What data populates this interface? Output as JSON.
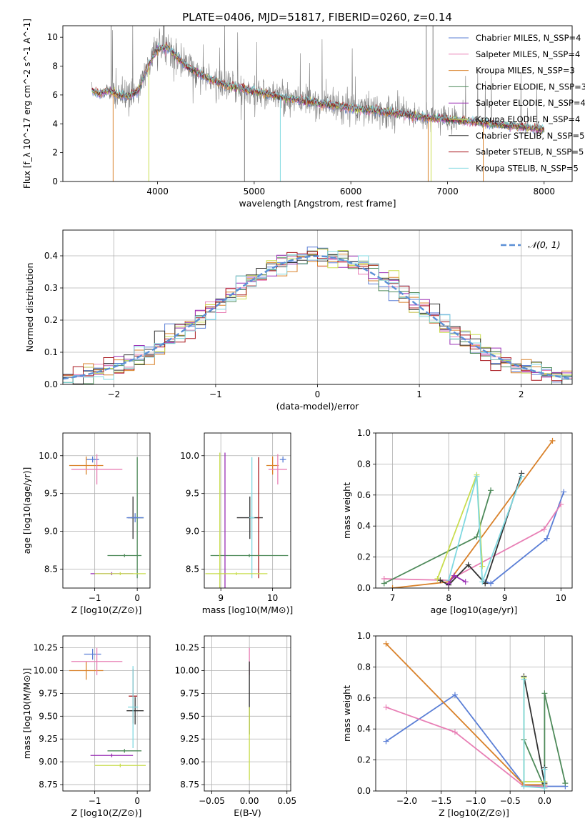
{
  "figure": {
    "title": "PLATE=0406, MJD=51817, FIBERID=0260, z=0.14"
  },
  "chart_data": [
    {
      "id": "spectrum",
      "type": "line",
      "xlabel": "wavelength [Angstrom, rest frame]",
      "ylabel": "Flux [f_λ 10^-17 erg cm^-2 s^-1 A^-1]",
      "xlim": [
        3020,
        8290
      ],
      "ylim": [
        0,
        10.8
      ],
      "xticks": [
        4000,
        5000,
        6000,
        7000,
        8000
      ],
      "yticks": [
        0,
        2,
        4,
        6,
        8,
        10
      ],
      "grid": false,
      "legend_position": "top-right",
      "legend": [
        {
          "label": "Chabrier MILES, N_SSP=4",
          "color": "#5b7fd6"
        },
        {
          "label": "Salpeter MILES, N_SSP=4",
          "color": "#e87fb5"
        },
        {
          "label": "Kroupa MILES, N_SSP=3",
          "color": "#d9822b"
        },
        {
          "label": "Chabrier ELODIE, N_SSP=3",
          "color": "#4e8a5a"
        },
        {
          "label": "Salpeter ELODIE, N_SSP=4",
          "color": "#9a2fb5"
        },
        {
          "label": "Kroupa ELODIE, N_SSP=4",
          "color": "#c9dd4f"
        },
        {
          "label": "Chabrier STELIB, N_SSP=5",
          "color": "#333333"
        },
        {
          "label": "Salpeter STELIB, N_SSP=5",
          "color": "#a8161b"
        },
        {
          "label": "Kroupa STELIB, N_SSP=5",
          "color": "#7fd8e0"
        }
      ],
      "observed_color": "#7f7f7f",
      "continuum": {
        "x": [
          3320,
          3400,
          3500,
          3600,
          3700,
          3800,
          3900,
          4000,
          4100,
          4200,
          4300,
          4500,
          4700,
          4900,
          5100,
          5300,
          5500,
          5800,
          6100,
          6400,
          6700,
          7000,
          7300,
          7600,
          7900,
          8000
        ],
        "y": [
          6.3,
          6.1,
          6.3,
          6.0,
          5.9,
          6.3,
          8.0,
          9.2,
          9.3,
          8.6,
          8.0,
          7.2,
          6.7,
          6.4,
          6.1,
          5.8,
          5.6,
          5.3,
          5.0,
          4.8,
          4.5,
          4.3,
          4.1,
          3.9,
          3.7,
          3.6
        ]
      },
      "spikes": [
        {
          "x": 3540,
          "y": 0,
          "color": "#d9822b"
        },
        {
          "x": 3910,
          "y": 0,
          "color": "#c9dd4f"
        },
        {
          "x": 5270,
          "y": 0,
          "color": "#7fd8e0"
        },
        {
          "x": 6800,
          "y": 0,
          "color": "#d9822b"
        },
        {
          "x": 6830,
          "y": 0,
          "color": "#c9dd4f"
        },
        {
          "x": 7370,
          "y": 0,
          "color": "#d9822b"
        },
        {
          "x": 4900,
          "y": 0,
          "color": "#7f7f7f"
        },
        {
          "x": 6780,
          "y": 10.8,
          "color": "#7f7f7f"
        },
        {
          "x": 6850,
          "y": 10.8,
          "color": "#7f7f7f"
        },
        {
          "x": 3520,
          "y": 10.8,
          "color": "#7f7f7f"
        }
      ]
    },
    {
      "id": "residuals",
      "type": "line",
      "xlabel": "(data-model)/error",
      "ylabel": "Normed distribution",
      "xlim": [
        -2.5,
        2.5
      ],
      "ylim": [
        0,
        0.48
      ],
      "xticks": [
        -2,
        -1,
        0,
        1,
        2
      ],
      "yticks": [
        0.0,
        0.1,
        0.2,
        0.3,
        0.4
      ],
      "grid": true,
      "legend": [
        {
          "label": "𝒩(0, 1)",
          "color": "#5b8fd6"
        }
      ],
      "legend_position": "top-right",
      "bin_width": 0.1
    },
    {
      "id": "age-vs-Z",
      "type": "scatter",
      "xlabel": "Z [log10(Z/Z⊙)]",
      "ylabel": "age [log10(age/yr)]",
      "xlim": [
        -1.75,
        0.3
      ],
      "ylim": [
        8.25,
        10.3
      ],
      "xticks": [
        -1,
        0
      ],
      "yticks": [
        8.5,
        9.0,
        9.5,
        10.0
      ],
      "grid": true,
      "points": [
        {
          "x": -1.05,
          "y": 9.95,
          "xerr": 0.15,
          "yerr": 0.04,
          "color": "#5b7fd6"
        },
        {
          "x": -1.2,
          "y": 9.87,
          "xerr": 0.4,
          "yerr": 0.12,
          "color": "#d9822b"
        },
        {
          "x": -0.95,
          "y": 9.82,
          "xerr": 0.6,
          "yerr": 0.2,
          "color": "#e87fb5"
        },
        {
          "x": -0.1,
          "y": 9.18,
          "xerr": 0.12,
          "yerr": 0.28,
          "color": "#333333"
        },
        {
          "x": 0.0,
          "y": 9.18,
          "xerr": 0.15,
          "yerr": 0.8,
          "color": "#4e8a5a"
        },
        {
          "x": -0.05,
          "y": 9.18,
          "xerr": 0.2,
          "yerr": 0.06,
          "color": "#5b7fd6"
        },
        {
          "x": -0.3,
          "y": 8.68,
          "xerr": 0.4,
          "yerr": 0.02,
          "color": "#4e8a5a"
        },
        {
          "x": -0.6,
          "y": 8.44,
          "xerr": 0.5,
          "yerr": 0.02,
          "color": "#9a2fb5"
        },
        {
          "x": -0.4,
          "y": 8.44,
          "xerr": 0.6,
          "yerr": 0.02,
          "color": "#c9dd4f"
        }
      ]
    },
    {
      "id": "age-vs-mass",
      "type": "scatter",
      "xlabel": "mass [log10(M/M⊙)]",
      "ylabel": "",
      "xlim": [
        8.68,
        10.35
      ],
      "ylim": [
        8.25,
        10.3
      ],
      "xticks": [
        9,
        10
      ],
      "yticks": [
        8.5,
        9.0,
        9.5,
        10.0
      ],
      "grid": true,
      "points": [
        {
          "x": 10.2,
          "y": 9.95,
          "xerr": 0.06,
          "yerr": 0.04,
          "color": "#5b7fd6"
        },
        {
          "x": 10.0,
          "y": 9.87,
          "xerr": 0.12,
          "yerr": 0.12,
          "color": "#d9822b"
        },
        {
          "x": 10.1,
          "y": 9.82,
          "xerr": 0.18,
          "yerr": 0.2,
          "color": "#e87fb5"
        },
        {
          "x": 9.56,
          "y": 9.18,
          "xerr": 0.25,
          "yerr": 0.28,
          "color": "#333333"
        },
        {
          "x": 9.73,
          "y": 9.18,
          "xerr": 0.02,
          "yerr": 0.8,
          "color": "#a8161b"
        },
        {
          "x": 9.6,
          "y": 9.18,
          "xerr": 0.05,
          "yerr": 0.8,
          "color": "#7fd8e0"
        },
        {
          "x": 9.55,
          "y": 8.68,
          "xerr": 0.75,
          "yerr": 0.02,
          "color": "#4e8a5a"
        },
        {
          "x": 9.08,
          "y": 8.44,
          "xerr": 0.02,
          "yerr": 1.6,
          "color": "#9a2fb5"
        },
        {
          "x": 8.98,
          "y": 8.44,
          "xerr": 0.02,
          "yerr": 1.6,
          "color": "#c9dd4f"
        },
        {
          "x": 9.3,
          "y": 8.44,
          "xerr": 0.6,
          "yerr": 0.02,
          "color": "#c9dd4f"
        }
      ]
    },
    {
      "id": "mass-weight-vs-age",
      "type": "line",
      "xlabel": "age [log10(age/yr)]",
      "ylabel": "mass weight",
      "xlim": [
        6.7,
        10.2
      ],
      "ylim": [
        0,
        1.0
      ],
      "xticks": [
        7,
        8,
        9,
        10
      ],
      "yticks": [
        0.0,
        0.2,
        0.4,
        0.6,
        0.8,
        1.0
      ],
      "grid": true,
      "series": [
        {
          "color": "#5b7fd6",
          "x": [
            8.65,
            8.75,
            9.75,
            10.05
          ],
          "y": [
            0.04,
            0.03,
            0.32,
            0.62
          ]
        },
        {
          "color": "#e87fb5",
          "x": [
            6.85,
            8.0,
            9.7,
            10.0
          ],
          "y": [
            0.06,
            0.05,
            0.38,
            0.54
          ]
        },
        {
          "color": "#d9822b",
          "x": [
            7.0,
            8.0,
            9.85
          ],
          "y": [
            0.0,
            0.04,
            0.95
          ]
        },
        {
          "color": "#4e8a5a",
          "x": [
            6.85,
            8.5,
            8.75
          ],
          "y": [
            0.03,
            0.33,
            0.63
          ]
        },
        {
          "color": "#333333",
          "x": [
            7.85,
            8.0,
            8.35,
            8.65,
            9.3
          ],
          "y": [
            0.05,
            0.02,
            0.15,
            0.03,
            0.74
          ]
        },
        {
          "color": "#c9dd4f",
          "x": [
            7.8,
            8.5,
            8.6
          ],
          "y": [
            0.06,
            0.73,
            0.14
          ]
        },
        {
          "color": "#7fd8e0",
          "x": [
            8.0,
            8.5,
            8.6,
            9.3
          ],
          "y": [
            0.05,
            0.72,
            0.04,
            0.72
          ]
        },
        {
          "color": "#9a2fb5",
          "x": [
            8.0,
            8.1,
            8.3
          ],
          "y": [
            0.03,
            0.08,
            0.04
          ]
        }
      ]
    },
    {
      "id": "mass-vs-Z",
      "type": "scatter",
      "xlabel": "Z [log10(Z/Z⊙)]",
      "ylabel": "mass [log10(M/M⊙)]",
      "xlim": [
        -1.75,
        0.3
      ],
      "ylim": [
        8.68,
        10.38
      ],
      "xticks": [
        -1,
        0
      ],
      "yticks": [
        8.75,
        9.0,
        9.25,
        9.5,
        9.75,
        10.0,
        10.25
      ],
      "grid": true,
      "points": [
        {
          "x": -1.05,
          "y": 10.18,
          "xerr": 0.2,
          "yerr": 0.06,
          "color": "#5b7fd6"
        },
        {
          "x": -1.2,
          "y": 10.0,
          "xerr": 0.4,
          "yerr": 0.1,
          "color": "#d9822b"
        },
        {
          "x": -0.95,
          "y": 10.1,
          "xerr": 0.6,
          "yerr": 0.15,
          "color": "#e87fb5"
        },
        {
          "x": -0.1,
          "y": 9.72,
          "xerr": 0.1,
          "yerr": 0.3,
          "color": "#a8161b"
        },
        {
          "x": -0.05,
          "y": 9.56,
          "xerr": 0.2,
          "yerr": 0.15,
          "color": "#333333"
        },
        {
          "x": -0.1,
          "y": 9.6,
          "xerr": 0.12,
          "yerr": 0.45,
          "color": "#7fd8e0"
        },
        {
          "x": -0.3,
          "y": 9.12,
          "xerr": 0.4,
          "yerr": 0.02,
          "color": "#4e8a5a"
        },
        {
          "x": -0.6,
          "y": 9.07,
          "xerr": 0.5,
          "yerr": 0.02,
          "color": "#9a2fb5"
        },
        {
          "x": -0.4,
          "y": 8.96,
          "xerr": 0.6,
          "yerr": 0.02,
          "color": "#c9dd4f"
        }
      ]
    },
    {
      "id": "mass-vs-EBV",
      "type": "scatter",
      "xlabel": "E(B-V)",
      "ylabel": "",
      "xlim": [
        -0.06,
        0.055
      ],
      "ylim": [
        8.68,
        10.38
      ],
      "xticks": [
        -0.05,
        0.0,
        0.05
      ],
      "yticks": [
        8.75,
        9.0,
        9.25,
        9.5,
        9.75,
        10.0,
        10.25
      ],
      "grid": true,
      "points": [
        {
          "x": 0.0,
          "y": 10.1,
          "xerr": 0.0,
          "yerr": 0.15,
          "color": "#e87fb5"
        },
        {
          "x": 0.0,
          "y": 9.7,
          "xerr": 0.0,
          "yerr": 0.4,
          "color": "#333333"
        },
        {
          "x": 0.0,
          "y": 9.2,
          "xerr": 0.0,
          "yerr": 0.4,
          "color": "#c9dd4f"
        }
      ]
    },
    {
      "id": "mass-weight-vs-Z",
      "type": "line",
      "xlabel": "Z [log10(Z/Z⊙)]",
      "ylabel": "mass weight",
      "xlim": [
        -2.45,
        0.4
      ],
      "ylim": [
        0,
        1.0
      ],
      "xticks": [
        -2.0,
        -1.5,
        -1.0,
        -0.5,
        0.0
      ],
      "yticks": [
        0.0,
        0.2,
        0.4,
        0.6,
        0.8,
        1.0
      ],
      "grid": true,
      "series": [
        {
          "color": "#5b7fd6",
          "x": [
            -2.3,
            -1.3,
            -0.3,
            0.0,
            0.3
          ],
          "y": [
            0.32,
            0.62,
            0.04,
            0.03,
            0.03
          ]
        },
        {
          "color": "#e87fb5",
          "x": [
            -2.3,
            -1.3,
            -0.3,
            0.0
          ],
          "y": [
            0.54,
            0.38,
            0.03,
            0.03
          ]
        },
        {
          "color": "#d9822b",
          "x": [
            -2.3,
            -0.3,
            0.0
          ],
          "y": [
            0.95,
            0.04,
            0.04
          ]
        },
        {
          "color": "#4e8a5a",
          "x": [
            -0.3,
            0.0,
            0.0,
            0.3
          ],
          "y": [
            0.33,
            0.02,
            0.63,
            0.05
          ]
        },
        {
          "color": "#333333",
          "x": [
            -0.3,
            0.0,
            0.0
          ],
          "y": [
            0.74,
            0.05,
            0.15
          ]
        },
        {
          "color": "#c9dd4f",
          "x": [
            -0.3,
            -0.3,
            0.0
          ],
          "y": [
            0.73,
            0.06,
            0.06
          ]
        },
        {
          "color": "#7fd8e0",
          "x": [
            -0.3,
            -0.3,
            0.0,
            0.0
          ],
          "y": [
            0.72,
            0.03,
            0.02,
            0.14
          ]
        }
      ]
    }
  ]
}
